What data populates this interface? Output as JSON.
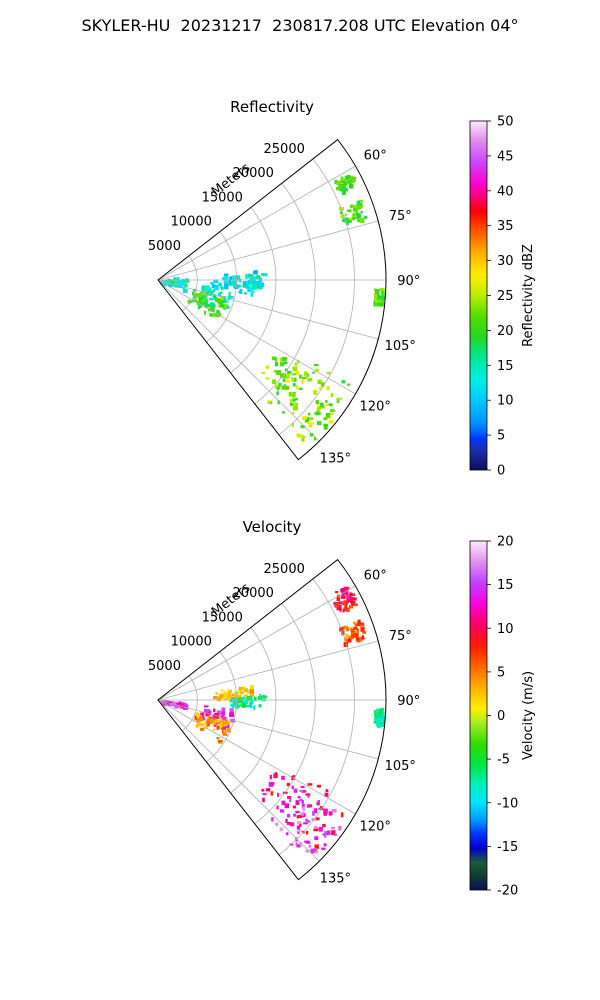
{
  "figure": {
    "title": "SKYLER-HU  20231217  230817.208 UTC Elevation 04°"
  },
  "chart_data": [
    {
      "type": "polar-ppi",
      "title": "Reflectivity",
      "range_label": "Meters",
      "range_ticks": [
        5000,
        10000,
        15000,
        20000,
        25000
      ],
      "range_max": 29000,
      "azimuth_ticks": [
        "60°",
        "75°",
        "90°",
        "105°",
        "120°",
        "135°"
      ],
      "azimuth_tick_values": [
        60,
        75,
        90,
        105,
        120,
        135
      ],
      "azimuth_range": [
        52,
        142
      ],
      "grid": true,
      "colorbar": {
        "label": "Reflectivity dBZ",
        "min": 0,
        "max": 50,
        "ticks": [
          "0",
          "5",
          "10",
          "15",
          "20",
          "25",
          "30",
          "35",
          "40",
          "45",
          "50"
        ],
        "stops": [
          [
            0,
            "#0a0f5a"
          ],
          [
            0.06,
            "#1f2fb0"
          ],
          [
            0.09,
            "#0033ff"
          ],
          [
            0.11,
            "#0066ff"
          ],
          [
            0.14,
            "#0099ff"
          ],
          [
            0.2,
            "#00c8ff"
          ],
          [
            0.26,
            "#00f0e0"
          ],
          [
            0.32,
            "#00e89a"
          ],
          [
            0.38,
            "#22d822"
          ],
          [
            0.44,
            "#55dd00"
          ],
          [
            0.5,
            "#bbee00"
          ],
          [
            0.56,
            "#ffee00"
          ],
          [
            0.62,
            "#ffb000"
          ],
          [
            0.7,
            "#ff4000"
          ],
          [
            0.74,
            "#ff0000"
          ],
          [
            0.78,
            "#ff0070"
          ],
          [
            0.82,
            "#ff00cc"
          ],
          [
            0.88,
            "#cc44ff"
          ],
          [
            0.94,
            "#dd88ee"
          ],
          [
            1,
            "#ffeaff"
          ]
        ]
      },
      "echo_areas": [
        {
          "az": [
            60,
            64
          ],
          "r": [
            25500,
            28000
          ],
          "value": 21
        },
        {
          "az": [
            68,
            73
          ],
          "r": [
            24500,
            27500
          ],
          "value": 21
        },
        {
          "az": [
            84,
            98
          ],
          "r": [
            6500,
            12500
          ],
          "value": 11
        },
        {
          "az": [
            86,
            94
          ],
          "r": [
            9000,
            13500
          ],
          "value": 13
        },
        {
          "az": [
            80,
            110
          ],
          "r": [
            300,
            3500
          ],
          "value": 14
        },
        {
          "az": [
            96,
            112
          ],
          "r": [
            5500,
            9500
          ],
          "value": 13
        },
        {
          "az": [
            104,
            124
          ],
          "r": [
            4500,
            9000
          ],
          "value": 20
        },
        {
          "az": [
            118,
            134
          ],
          "r": [
            17000,
            28000
          ],
          "value": 22
        },
        {
          "az": [
            122,
            138
          ],
          "r": [
            20000,
            28500
          ],
          "value": 24
        },
        {
          "az": [
            92,
            96
          ],
          "r": [
            27500,
            28500
          ],
          "value": 21
        }
      ]
    },
    {
      "type": "polar-ppi",
      "title": "Velocity",
      "range_label": "Meters",
      "range_ticks": [
        5000,
        10000,
        15000,
        20000,
        25000
      ],
      "range_max": 29000,
      "azimuth_ticks": [
        "60°",
        "75°",
        "90°",
        "105°",
        "120°",
        "135°"
      ],
      "azimuth_tick_values": [
        60,
        75,
        90,
        105,
        120,
        135
      ],
      "azimuth_range": [
        52,
        142
      ],
      "grid": true,
      "colorbar": {
        "label": "Velocity (m/s)",
        "min": -20,
        "max": 20,
        "ticks": [
          "-20",
          "-15",
          "-10",
          "-5",
          "0",
          "5",
          "10",
          "15",
          "20"
        ],
        "stops": [
          [
            0,
            "#0a0f5a"
          ],
          [
            0.04,
            "#123d2e"
          ],
          [
            0.08,
            "#1a5a3a"
          ],
          [
            0.12,
            "#0000cc"
          ],
          [
            0.16,
            "#0033ff"
          ],
          [
            0.2,
            "#0099ff"
          ],
          [
            0.25,
            "#00e5ff"
          ],
          [
            0.3,
            "#00f0c0"
          ],
          [
            0.36,
            "#00e640"
          ],
          [
            0.42,
            "#33dd00"
          ],
          [
            0.48,
            "#aaee22"
          ],
          [
            0.52,
            "#ffee00"
          ],
          [
            0.58,
            "#ffb000"
          ],
          [
            0.64,
            "#ff6600"
          ],
          [
            0.7,
            "#ff1a00"
          ],
          [
            0.76,
            "#ff0060"
          ],
          [
            0.82,
            "#ff00dd"
          ],
          [
            0.88,
            "#c040ff"
          ],
          [
            0.94,
            "#e090f0"
          ],
          [
            1,
            "#ffeaff"
          ]
        ]
      },
      "echo_areas": [
        {
          "az": [
            58,
            64
          ],
          "r": [
            25500,
            28000
          ],
          "value": 9
        },
        {
          "az": [
            68,
            73
          ],
          "r": [
            24500,
            27500
          ],
          "value": 6
        },
        {
          "az": [
            80,
            88
          ],
          "r": [
            7000,
            12000
          ],
          "value": 3
        },
        {
          "az": [
            86,
            94
          ],
          "r": [
            9000,
            13500
          ],
          "value": -7
        },
        {
          "az": [
            94,
            104
          ],
          "r": [
            300,
            3500
          ],
          "value": 14
        },
        {
          "az": [
            96,
            112
          ],
          "r": [
            5500,
            9500
          ],
          "value": 13
        },
        {
          "az": [
            106,
            124
          ],
          "r": [
            5000,
            9500
          ],
          "value": 4
        },
        {
          "az": [
            118,
            134
          ],
          "r": [
            17000,
            28000
          ],
          "value": 11
        },
        {
          "az": [
            122,
            138
          ],
          "r": [
            20000,
            28500
          ],
          "value": 15
        },
        {
          "az": [
            92,
            96
          ],
          "r": [
            27500,
            28500
          ],
          "value": -7
        }
      ]
    }
  ]
}
